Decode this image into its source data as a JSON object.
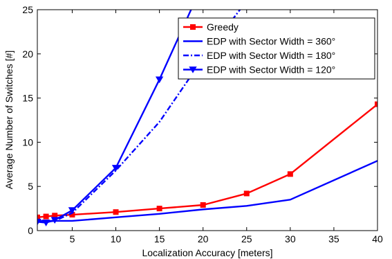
{
  "chart_data": {
    "type": "line",
    "title": "",
    "xlabel": "Localization Accuracy [meters]",
    "ylabel": "Average Number of Switches [#]",
    "xlim": [
      1,
      40
    ],
    "ylim": [
      0,
      25
    ],
    "xticks": [
      5,
      10,
      15,
      20,
      25,
      30,
      35,
      40
    ],
    "yticks": [
      0,
      5,
      10,
      15,
      20,
      25
    ],
    "grid": false,
    "legend_position": "top-right",
    "series": [
      {
        "name": "Greedy",
        "color": "#ff0000",
        "style": "solid",
        "marker": "square",
        "x": [
          1,
          2,
          3,
          5,
          10,
          15,
          20,
          25,
          30,
          40
        ],
        "y": [
          1.5,
          1.6,
          1.7,
          1.8,
          2.1,
          2.5,
          2.9,
          4.2,
          6.4,
          14.3
        ]
      },
      {
        "name": "EDP with Sector Width = 360°",
        "color": "#0000ff",
        "style": "solid",
        "marker": "none",
        "x": [
          1,
          2,
          3,
          5,
          10,
          15,
          20,
          25,
          30,
          40
        ],
        "y": [
          1.1,
          1.1,
          1.1,
          1.1,
          1.5,
          1.9,
          2.4,
          2.8,
          3.5,
          7.9
        ]
      },
      {
        "name": "EDP with Sector Width = 180°",
        "color": "#0000ff",
        "style": "dashdot",
        "marker": "none",
        "x": [
          1,
          2,
          3,
          5,
          10,
          15,
          20,
          25
        ],
        "y": [
          1.2,
          1.0,
          1.1,
          2.0,
          6.8,
          12.3,
          19.5,
          26.0
        ]
      },
      {
        "name": "EDP with Sector Width = 120°",
        "color": "#0000ff",
        "style": "solid",
        "marker": "triangle-down",
        "x": [
          1,
          2,
          3,
          5,
          10,
          15,
          20
        ],
        "y": [
          1.0,
          0.9,
          1.2,
          2.3,
          7.1,
          17.1,
          28.0
        ]
      }
    ]
  }
}
